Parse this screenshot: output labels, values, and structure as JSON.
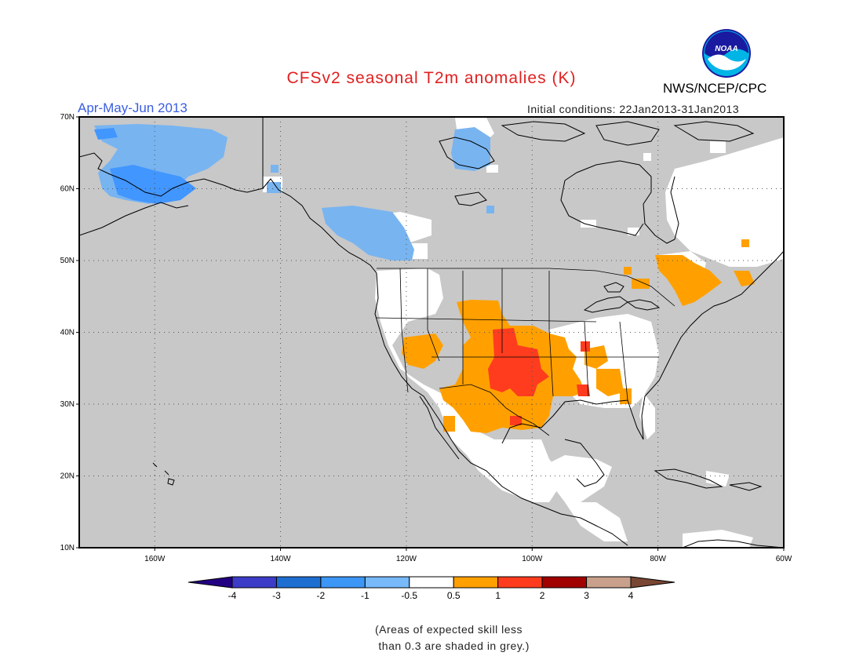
{
  "header": {
    "title": "CFSv2 seasonal T2m anomalies (K)",
    "agency": "NWS/NCEP/CPC",
    "season": "Apr-May-Jun 2013",
    "initial_conditions": "Initial conditions: 22Jan2013-31Jan2013"
  },
  "logo": {
    "text": "NOAA",
    "icon": "noaa-logo-icon"
  },
  "map": {
    "lon_range": [
      -172,
      -60
    ],
    "lat_range": [
      10,
      70
    ],
    "lat_labels": [
      "10N",
      "20N",
      "30N",
      "40N",
      "50N",
      "60N",
      "70N"
    ],
    "lat_values": [
      10,
      20,
      30,
      40,
      50,
      60,
      70
    ],
    "lon_labels": [
      "160W",
      "140W",
      "120W",
      "100W",
      "80W",
      "60W"
    ],
    "lon_values": [
      -160,
      -140,
      -120,
      -100,
      -80,
      -60
    ],
    "grid": true,
    "colors": {
      "grey_low_skill": "#c8c8c8",
      "neutral": "#ffffff",
      "minus_1": "#78b4f0",
      "minus_2": "#4196ff",
      "plus_05": "#ffa000",
      "plus_1": "#ff3c1e",
      "coastline": "#000000"
    }
  },
  "colorbar": {
    "labels": [
      "-4",
      "-3",
      "-2",
      "-1",
      "-0.5",
      "0.5",
      "1",
      "2",
      "3",
      "4"
    ],
    "colors": [
      "#230082",
      "#3c3cc8",
      "#1e6ed2",
      "#3c96f5",
      "#78b9fa",
      "#ffffff",
      "#ffa000",
      "#ff3c1e",
      "#a00000",
      "#c8a08c",
      "#784632"
    ]
  },
  "footnote": {
    "line1": "(Areas of expected skill less",
    "line2": " than 0.3 are shaded in grey.)"
  }
}
